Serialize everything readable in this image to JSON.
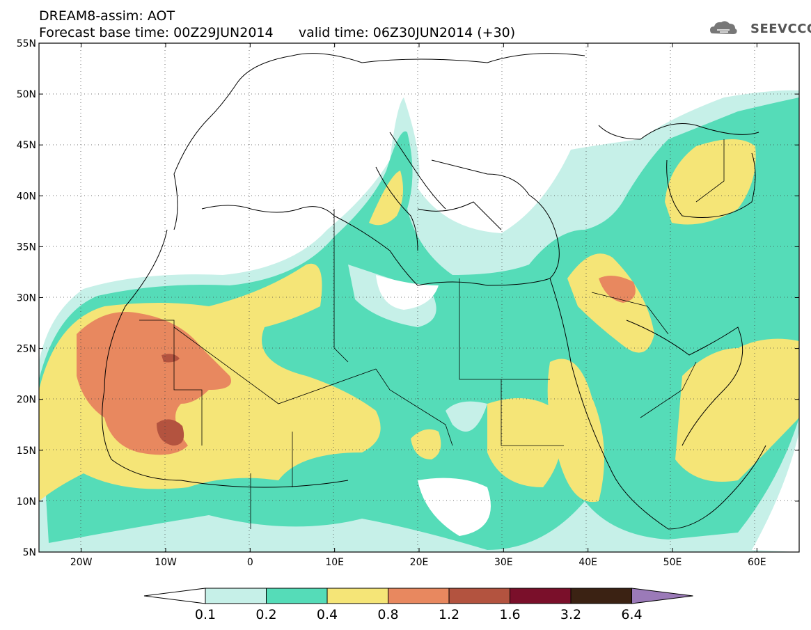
{
  "title": {
    "line1": "DREAM8-assim: AOT",
    "base_time": "Forecast base time: 00Z29JUN2014",
    "valid_time": "valid time: 06Z30JUN2014 (+30)"
  },
  "logo": {
    "text": "SEEVCCC",
    "icon": "cloud-icon"
  },
  "map": {
    "lon_range": [
      -25,
      65
    ],
    "lat_range": [
      5,
      55
    ],
    "lat_ticks": [
      "5N",
      "10N",
      "15N",
      "20N",
      "25N",
      "30N",
      "35N",
      "40N",
      "45N",
      "50N",
      "55N"
    ],
    "lon_ticks": [
      "20W",
      "10W",
      "0",
      "10E",
      "20E",
      "30E",
      "40E",
      "50E",
      "60E"
    ],
    "grid": true
  },
  "colorbar": {
    "labels": [
      "0.1",
      "0.2",
      "0.4",
      "0.8",
      "1.2",
      "1.6",
      "3.2",
      "6.4"
    ],
    "colors": [
      "#ffffff",
      "#c6f0e8",
      "#55dcb8",
      "#f5e577",
      "#e8885f",
      "#b3533f",
      "#7a0f2a",
      "#3b2213",
      "#9b7ab8"
    ]
  },
  "colors": {
    "c1": "#c6f0e8",
    "c2": "#55dcb8",
    "c3": "#f5e577",
    "c4": "#e8885f",
    "c5": "#b3533f"
  }
}
